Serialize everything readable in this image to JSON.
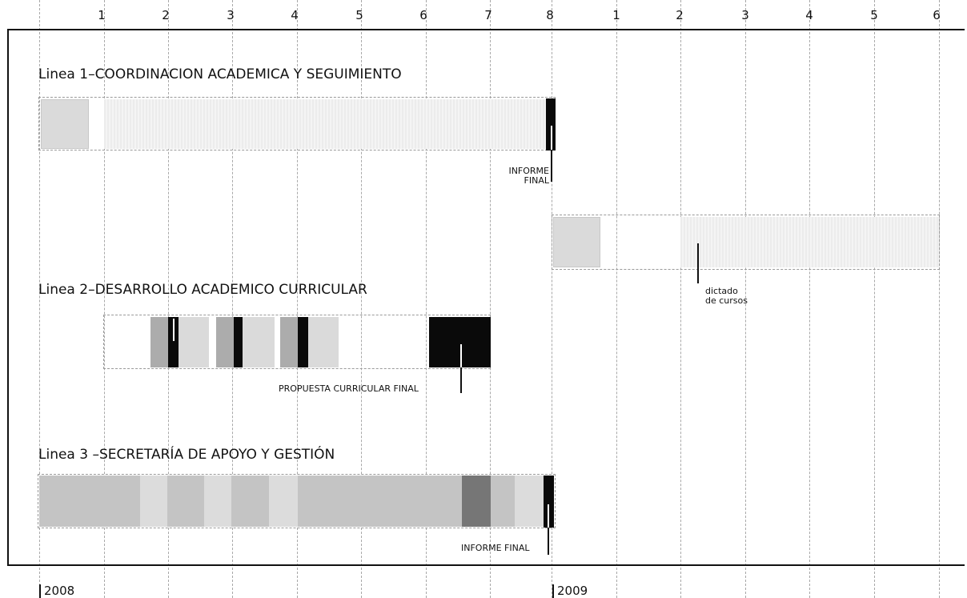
{
  "axis": {
    "months_top": [
      "1",
      "2",
      "3",
      "4",
      "5",
      "6",
      "7",
      "8",
      "1",
      "2",
      "3",
      "4",
      "5",
      "6"
    ],
    "years": [
      "2008",
      "2009"
    ]
  },
  "lines": [
    {
      "title": "Linea 1–COORDINACION ACADEMICA Y SEGUIMIENTO",
      "annotations": {
        "informe_final_l1": "INFORME",
        "informe_final_l2": "FINAL"
      }
    },
    {
      "title": "Linea 2–DESARROLLO ACADEMICO CURRICULAR",
      "annotations": {
        "propuesta": "PROPUESTA CURRICULAR FINAL"
      }
    },
    {
      "title": "Linea 3 –SECRETARÍA DE APOYO Y GESTIÓN",
      "annotations": {
        "informe_final": "INFORME FINAL"
      }
    }
  ],
  "phase_2009": {
    "annotation_l1": "dictado",
    "annotation_l2": "de cursos"
  },
  "colors": {
    "light": "#dadada",
    "hatch": "#ececec",
    "mid": "#acacac",
    "band": "#c4c4c4",
    "dark": "#767676",
    "black": "#0a0a0a"
  }
}
